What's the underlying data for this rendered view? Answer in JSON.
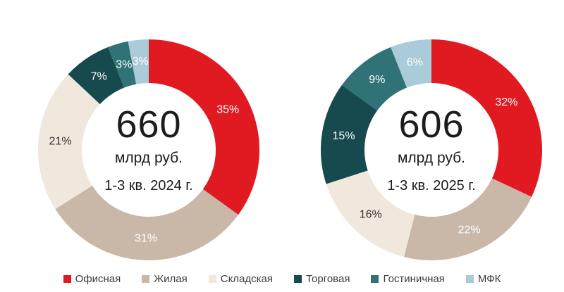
{
  "page": {
    "background": "#ffffff"
  },
  "charts": [
    {
      "name": "2024",
      "total": "660",
      "unit": "млрд руб.",
      "period": "1-3 кв. 2024 г.",
      "segments": [
        {
          "id": "office",
          "label": "Офисная",
          "value": 35,
          "display": "35%",
          "color": "#E11920",
          "label_color": "#ffffff"
        },
        {
          "id": "residential",
          "label": "Жилая",
          "value": 31,
          "display": "31%",
          "color": "#C9B8A8",
          "label_color": "#ffffff"
        },
        {
          "id": "warehouse",
          "label": "Складская",
          "value": 21,
          "display": "21%",
          "color": "#F0E8DD",
          "label_color": "#333333"
        },
        {
          "id": "retail",
          "label": "Торговая",
          "value": 7,
          "display": "7%",
          "color": "#164A4E",
          "label_color": "#ffffff"
        },
        {
          "id": "hotel",
          "label": "Гостиничная",
          "value": 3,
          "display": "3%",
          "color": "#2F7377",
          "label_color": "#ffffff"
        },
        {
          "id": "mfc",
          "label": "МФК",
          "value": 3,
          "display": "3%",
          "color": "#A9CBDA",
          "label_color": "#ffffff"
        }
      ]
    },
    {
      "name": "2025",
      "total": "606",
      "unit": "млрд руб.",
      "period": "1-3 кв. 2025 г.",
      "segments": [
        {
          "id": "office",
          "label": "Офисная",
          "value": 32,
          "display": "32%",
          "color": "#E11920",
          "label_color": "#ffffff"
        },
        {
          "id": "residential",
          "label": "Жилая",
          "value": 22,
          "display": "22%",
          "color": "#C9B8A8",
          "label_color": "#ffffff"
        },
        {
          "id": "warehouse",
          "label": "Складская",
          "value": 16,
          "display": "16%",
          "color": "#F0E8DD",
          "label_color": "#333333"
        },
        {
          "id": "retail",
          "label": "Торговая",
          "value": 15,
          "display": "15%",
          "color": "#164A4E",
          "label_color": "#ffffff"
        },
        {
          "id": "hotel",
          "label": "Гостиничная",
          "value": 9,
          "display": "9%",
          "color": "#2F7377",
          "label_color": "#ffffff"
        },
        {
          "id": "mfc",
          "label": "МФК",
          "value": 6,
          "display": "6%",
          "color": "#A9CBDA",
          "label_color": "#ffffff"
        }
      ]
    }
  ],
  "legend": [
    {
      "id": "office",
      "label": "Офисная",
      "color": "#E11920"
    },
    {
      "id": "residential",
      "label": "Жилая",
      "color": "#C9B8A8"
    },
    {
      "id": "warehouse",
      "label": "Складская",
      "color": "#F0E8DD"
    },
    {
      "id": "retail",
      "label": "Торговая",
      "color": "#164A4E"
    },
    {
      "id": "hotel",
      "label": "Гостиничная",
      "color": "#2F7377"
    },
    {
      "id": "mfc",
      "label": "МФК",
      "color": "#A9CBDA"
    }
  ],
  "chart_data": [
    {
      "type": "pie",
      "subtype": "donut",
      "title": "1-3 кв. 2024 г.",
      "center_value": "660",
      "center_unit": "млрд руб.",
      "categories": [
        "Офисная",
        "Жилая",
        "Складская",
        "Торговая",
        "Гостиничная",
        "МФК"
      ],
      "values": [
        35,
        31,
        21,
        7,
        3,
        3
      ],
      "value_unit": "%",
      "colors": [
        "#E11920",
        "#C9B8A8",
        "#F0E8DD",
        "#164A4E",
        "#2F7377",
        "#A9CBDA"
      ],
      "start_angle_deg": 0,
      "direction": "clockwise",
      "legend_position": "bottom"
    },
    {
      "type": "pie",
      "subtype": "donut",
      "title": "1-3 кв. 2025 г.",
      "center_value": "606",
      "center_unit": "млрд руб.",
      "categories": [
        "Офисная",
        "Жилая",
        "Складская",
        "Торговая",
        "Гостиничная",
        "МФК"
      ],
      "values": [
        32,
        22,
        16,
        15,
        9,
        6
      ],
      "value_unit": "%",
      "colors": [
        "#E11920",
        "#C9B8A8",
        "#F0E8DD",
        "#164A4E",
        "#2F7377",
        "#A9CBDA"
      ],
      "start_angle_deg": 0,
      "direction": "clockwise",
      "legend_position": "bottom"
    }
  ]
}
